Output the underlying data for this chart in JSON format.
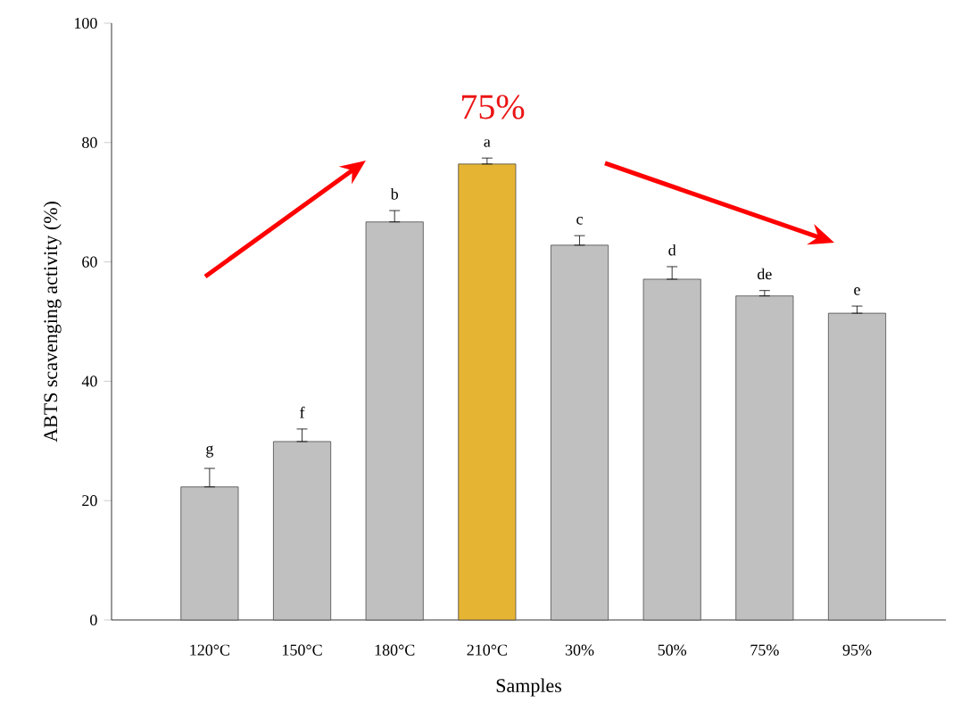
{
  "chart_data": {
    "type": "bar",
    "xlabel": "Samples",
    "ylabel": "ABTS  scavenging activity (%)",
    "categories": [
      "120°C",
      "150°C",
      "180°C",
      "210°C",
      "30%",
      "50%",
      "75%",
      "95%"
    ],
    "values": [
      22.3,
      29.9,
      66.7,
      76.4,
      62.8,
      57.1,
      54.3,
      51.4
    ],
    "errors": [
      [
        22.3,
        25.4
      ],
      [
        29.9,
        32.0
      ],
      [
        66.7,
        68.6
      ],
      [
        76.4,
        77.4
      ],
      [
        62.8,
        64.4
      ],
      [
        57.1,
        59.2
      ],
      [
        54.3,
        55.2
      ],
      [
        51.4,
        52.6
      ]
    ],
    "colors": [
      "#c0c0c0",
      "#c0c0c0",
      "#c0c0c0",
      "#e6b433",
      "#c0c0c0",
      "#c0c0c0",
      "#c0c0c0",
      "#c0c0c0"
    ],
    "value_labels": [
      "g",
      "f",
      "b",
      "a",
      "c",
      "d",
      "de",
      "e"
    ],
    "ylim": [
      0,
      100
    ],
    "yticks": [
      0,
      20,
      40,
      60,
      80,
      100
    ],
    "grid": false,
    "annotations": [
      "75%"
    ]
  }
}
